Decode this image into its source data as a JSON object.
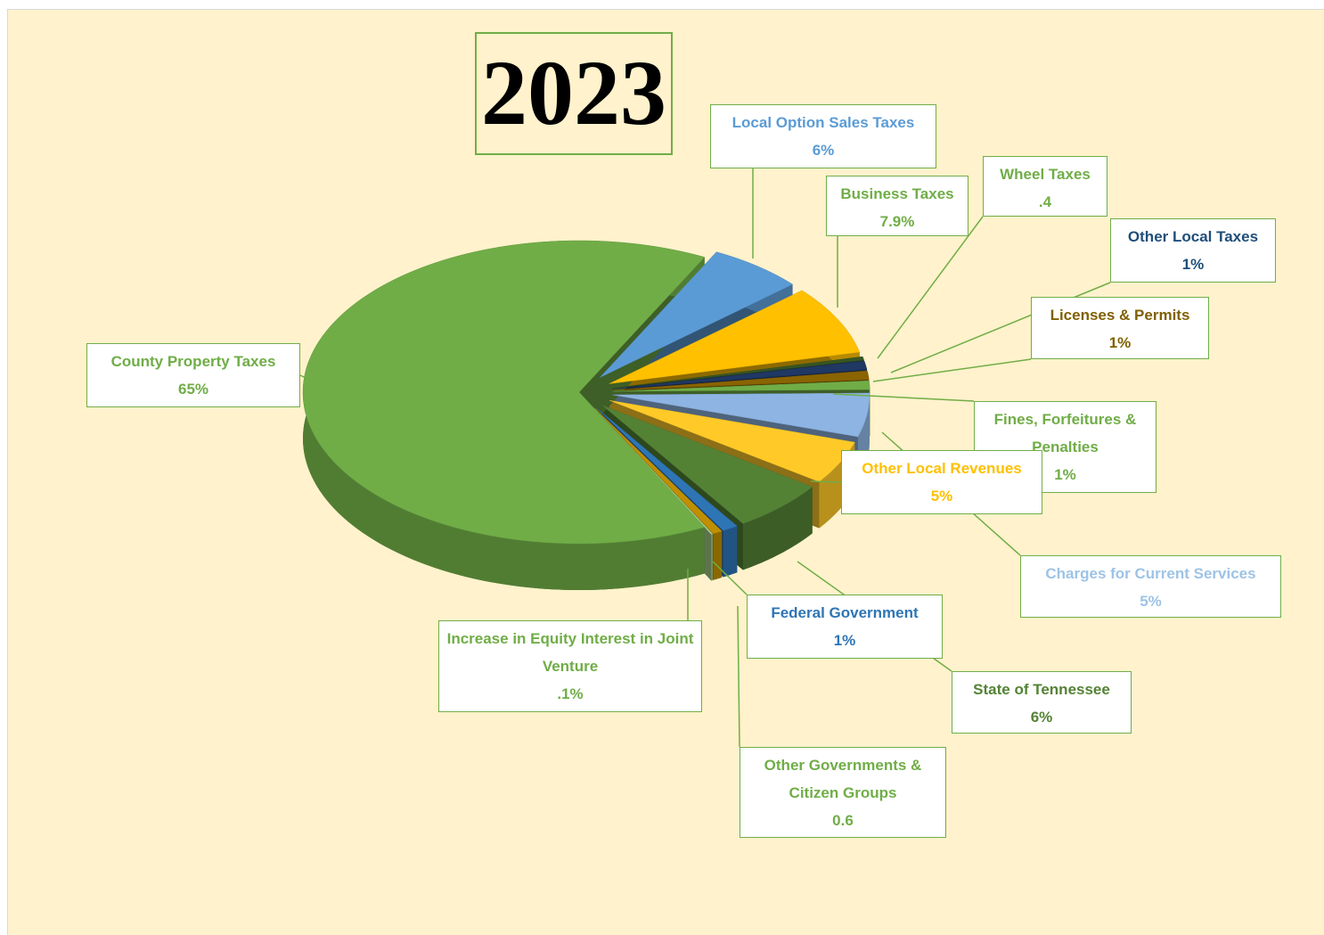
{
  "chart_data": {
    "type": "pie",
    "title": "2023",
    "categories": [
      "Local Option Sales Taxes",
      "Business Taxes",
      "Wheel Taxes",
      "Other Local Taxes",
      "Licenses & Permits",
      "Fines, Forfeitures & Penalties",
      "Charges for Current Services",
      "Other Local Revenues",
      "State of Tennessee",
      "Federal Government",
      "Other Governments & Citizen Groups",
      "Increase in Equity Interest in Joint Venture",
      "County Property Taxes"
    ],
    "values": [
      6,
      7.9,
      0.4,
      1,
      1,
      1,
      5,
      5,
      6,
      1,
      0.6,
      0.1,
      65
    ],
    "value_labels": [
      "6%",
      "7.9%",
      ".4",
      "1%",
      "1%",
      "1%",
      "5%",
      "5%",
      "6%",
      "1%",
      "0.6",
      ".1%",
      "65%"
    ],
    "colors": [
      "#5b9bd5",
      "#ffc000",
      "#375623",
      "#1f3864",
      "#8a6400",
      "#70ad47",
      "#8db4e2",
      "#ffca28",
      "#548235",
      "#2e75b6",
      "#bf8f00",
      "#a9d18e",
      "#70ad47"
    ],
    "label_colors": [
      "#5b9bd5",
      "#70ad47",
      "#70ad47",
      "#1f4e79",
      "#806000",
      "#70ad47",
      "#9dc3e6",
      "#ffc000",
      "#548235",
      "#2e75b6",
      "#70ad47",
      "#70ad47",
      "#70ad47"
    ]
  }
}
